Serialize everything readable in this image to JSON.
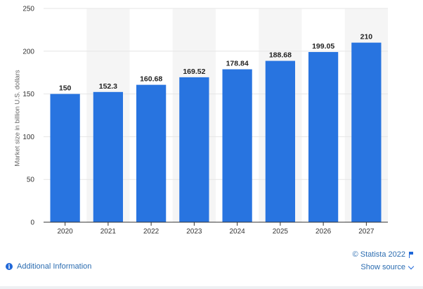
{
  "chart_data": {
    "type": "bar",
    "categories": [
      "2020",
      "2021",
      "2022",
      "2023",
      "2024",
      "2025",
      "2026",
      "2027"
    ],
    "values": [
      150,
      152.3,
      160.68,
      169.52,
      178.84,
      188.68,
      199.05,
      210
    ],
    "value_labels": [
      "150",
      "152.3",
      "160.68",
      "169.52",
      "178.84",
      "188.68",
      "199.05",
      "210"
    ],
    "ylabel": "Market size in billion U.S. dollars",
    "ylim": [
      0,
      250
    ],
    "yticks": [
      0,
      50,
      100,
      150,
      200,
      250
    ],
    "grid": true,
    "bar_color": "#2874e0"
  },
  "footer": {
    "credit": "© Statista 2022",
    "additional_info": "Additional Information",
    "show_source": "Show source"
  },
  "colors": {
    "link": "#2b6cb0",
    "band": "#f5f5f5",
    "grid": "#e6e6e6"
  }
}
